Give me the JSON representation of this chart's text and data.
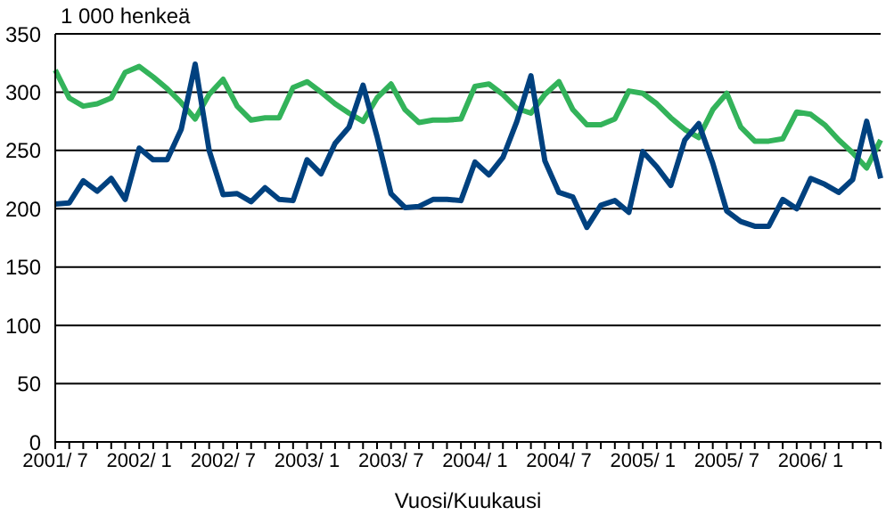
{
  "chart_data": {
    "type": "line",
    "ylabel": "1 000 henkeä",
    "xlabel": "Vuosi/Kuukausi",
    "categories": [
      "2001/ 7",
      null,
      null,
      null,
      null,
      null,
      "2002/ 1",
      null,
      null,
      null,
      null,
      null,
      "2002/ 7",
      null,
      null,
      null,
      null,
      null,
      "2003/ 1",
      null,
      null,
      null,
      null,
      null,
      "2003/ 7",
      null,
      null,
      null,
      null,
      null,
      "2004/ 1",
      null,
      null,
      null,
      null,
      null,
      "2004/ 7",
      null,
      null,
      null,
      null,
      null,
      "2005/ 1",
      null,
      null,
      null,
      null,
      null,
      "2005/ 7",
      null,
      null,
      null,
      null,
      null,
      "2006/ 1",
      null,
      null,
      null,
      null,
      null
    ],
    "series": [
      {
        "color": "#33b35a",
        "values": [
          319,
          295,
          288,
          290,
          295,
          317,
          322,
          313,
          303,
          291,
          277,
          298,
          311,
          288,
          276,
          278,
          278,
          304,
          309,
          300,
          290,
          282,
          275,
          295,
          307,
          285,
          274,
          276,
          276,
          277,
          305,
          307,
          298,
          286,
          282,
          298,
          309,
          285,
          272,
          272,
          277,
          301,
          299,
          290,
          278,
          268,
          261,
          285,
          299,
          270,
          258,
          258,
          260,
          283,
          281,
          272,
          259,
          248,
          235,
          259
        ]
      },
      {
        "color": "#00417f",
        "values": [
          204,
          205,
          224,
          215,
          226,
          208,
          252,
          242,
          242,
          268,
          324,
          250,
          212,
          213,
          206,
          218,
          208,
          207,
          242,
          230,
          256,
          270,
          306,
          262,
          213,
          201,
          202,
          208,
          208,
          207,
          240,
          229,
          244,
          275,
          314,
          241,
          214,
          210,
          184,
          203,
          207,
          197,
          249,
          236,
          220,
          259,
          273,
          239,
          198,
          189,
          185,
          185,
          208,
          200,
          226,
          221,
          214,
          225,
          275,
          226
        ]
      }
    ],
    "ylim": [
      0,
      350
    ],
    "yticks": [
      0,
      50,
      100,
      150,
      200,
      250,
      300,
      350
    ],
    "grid": "y",
    "legend": false,
    "marker": "none",
    "line_style": "solid"
  }
}
